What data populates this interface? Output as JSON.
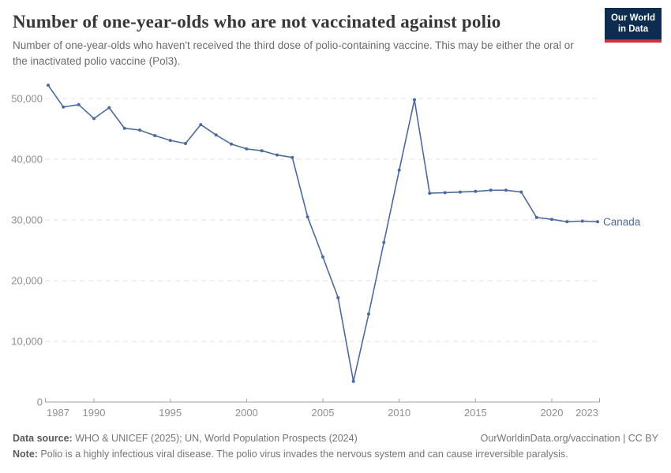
{
  "header": {
    "title": "Number of one-year-olds who are not vaccinated against polio",
    "subtitle": "Number of one-year-olds who haven't received the third dose of polio-containing vaccine. This may be either the oral or the inactivated polio vaccine (Pol3).",
    "logo": {
      "line1": "Our World",
      "line2": "in Data"
    }
  },
  "chart_data": {
    "type": "line",
    "title": "Number of one-year-olds who are not vaccinated against polio",
    "x": [
      1987,
      1988,
      1989,
      1990,
      1991,
      1992,
      1993,
      1994,
      1995,
      1996,
      1997,
      1998,
      1999,
      2000,
      2001,
      2002,
      2003,
      2004,
      2005,
      2006,
      2007,
      2008,
      2009,
      2010,
      2011,
      2012,
      2013,
      2014,
      2015,
      2016,
      2017,
      2018,
      2019,
      2020,
      2021,
      2022,
      2023
    ],
    "series": [
      {
        "name": "Canada",
        "values": [
          52200,
          48600,
          49000,
          46700,
          48500,
          45100,
          44800,
          43900,
          43100,
          42600,
          45700,
          44000,
          42500,
          41700,
          41400,
          40700,
          40300,
          30500,
          23900,
          17200,
          3400,
          14500,
          26300,
          38200,
          49800,
          34400,
          34500,
          34600,
          34700,
          34900,
          34900,
          34600,
          30400,
          30100,
          29700,
          29800,
          29700
        ]
      }
    ],
    "xlim": [
      1987,
      2023
    ],
    "ylim": [
      0,
      50000
    ],
    "x_ticks": [
      1987,
      1990,
      1995,
      2000,
      2005,
      2010,
      2015,
      2020,
      2023
    ],
    "y_ticks": [
      0,
      10000,
      20000,
      30000,
      40000,
      50000
    ],
    "y_tick_labels": [
      "0",
      "10,000",
      "20,000",
      "30,000",
      "40,000",
      "50,000"
    ],
    "grid": "horizontal-dashed",
    "legend_position": "line-end-label"
  },
  "footer": {
    "source_label": "Data source:",
    "source_text": " WHO & UNICEF (2025); UN, World Population Prospects (2024)",
    "rights": "OurWorldinData.org/vaccination | CC BY",
    "note_label": "Note:",
    "note_text": " Polio is a highly infectious viral disease. The polio virus invades the nervous system and can cause irreversible paralysis."
  },
  "colors": {
    "line": "#4C6A9C",
    "grid": "#e2e2e2",
    "axis": "#a3a3a3",
    "tick_label": "#8f8f8f",
    "logo_bg": "#0d2c4f",
    "logo_accent": "#d0313f"
  }
}
